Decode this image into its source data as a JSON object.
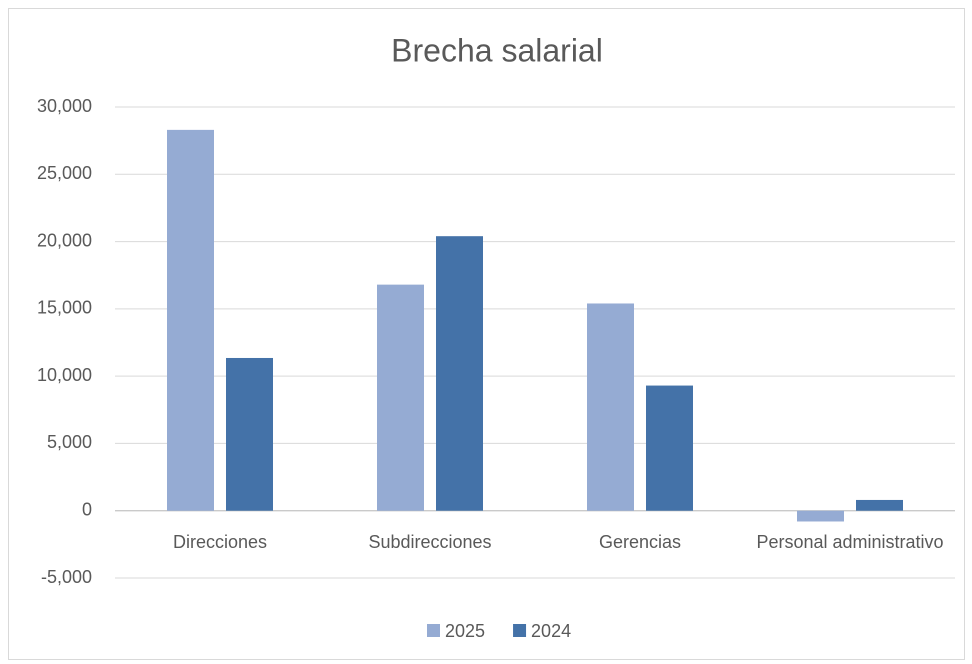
{
  "chart_data": {
    "type": "bar",
    "title": "Brecha salarial",
    "categories": [
      "Direcciones",
      "Subdirecciones",
      "Gerencias",
      "Personal administrativo"
    ],
    "series": [
      {
        "name": "2025",
        "color": "#95abd3",
        "values": [
          28300,
          16800,
          15400,
          -800
        ]
      },
      {
        "name": "2024",
        "color": "#4472a8",
        "values": [
          11350,
          20400,
          9300,
          800
        ]
      }
    ],
    "ylim": [
      -5000,
      30000
    ],
    "yticks": [
      {
        "value": -5000,
        "label": "-5,000"
      },
      0,
      {
        "value": 5000,
        "label": "5,000"
      },
      {
        "value": 10000,
        "label": "10,000"
      },
      {
        "value": 15000,
        "label": "15,000"
      },
      {
        "value": 20000,
        "label": "20,000"
      },
      {
        "value": 25000,
        "label": "25,000"
      },
      {
        "value": 30000,
        "label": "30,000"
      }
    ],
    "grid": true,
    "legend": "bottom"
  }
}
